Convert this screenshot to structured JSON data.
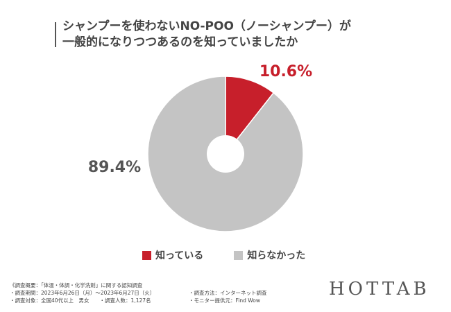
{
  "title_lines": [
    "シャンプーを使わないNO-POO（ノーシャンプー）が",
    "一般的になりつつあるのを知っていましたか"
  ],
  "chart_data": {
    "type": "pie",
    "donut": true,
    "categories": [
      "知っている",
      "知らなかった"
    ],
    "values": [
      10.6,
      89.4
    ],
    "labels": [
      "10.6%",
      "89.4%"
    ],
    "colors": [
      "#c71f2b",
      "#c4c4c4"
    ],
    "label_colors": [
      "#c71f2b",
      "#555555"
    ],
    "legend_position": "bottom"
  },
  "notes": {
    "rows": [
      {
        "left": "《調査概要：「体温・体調・化学洗剤」に関する認知調査",
        "right": ""
      },
      {
        "left": "・調査期間：2023年6月26日（月）～2023年6月27日（火）",
        "right": "・調査方法：インターネット調査"
      },
      {
        "left": "・調査対象：全国40代以上　男女　　・調査人数：1,127名",
        "right": "・モニター提供元：Find Wow"
      }
    ]
  },
  "logo_text": "HOTTAB"
}
